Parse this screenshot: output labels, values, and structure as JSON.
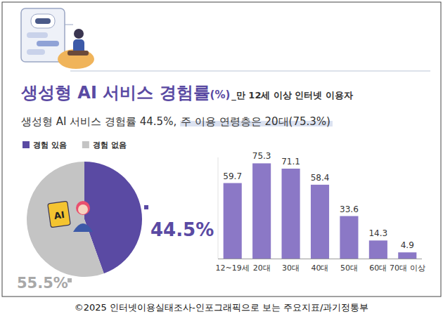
{
  "header": {
    "title": "생성형 AI 서비스 경험률",
    "title_unit": "(%)",
    "title_note": "_만 12세 이상 인터넷 이용자",
    "subtitle": [
      "생성형 AI 서비스 경험률 44.5%,",
      "주 이용 연령층은 20대(75.3%)"
    ]
  },
  "illustration": {
    "card_text": "AI"
  },
  "chart_data": [
    {
      "type": "pie",
      "categories": [
        "경험 있음",
        "경험 없음"
      ],
      "values": [
        44.5,
        55.5
      ],
      "value_labels": [
        "44.5%",
        "55.5%"
      ],
      "colors": [
        "#5a4aa3",
        "#c4c4c4"
      ],
      "legend": "top-left",
      "data_labels": true
    },
    {
      "type": "bar",
      "categories": [
        "12~19세",
        "20대",
        "30대",
        "40대",
        "50대",
        "60대",
        "70대 이상"
      ],
      "values": [
        59.7,
        75.3,
        71.1,
        58.4,
        33.6,
        14.3,
        4.9
      ],
      "color": "#8b78c6",
      "ylim": [
        0,
        80
      ],
      "tick_labels": "x",
      "data_labels": true,
      "grid": false
    }
  ],
  "source": "©2025 인터넷이용실태조사-인포그래픽으로 보는 주요지표/과기정통부"
}
